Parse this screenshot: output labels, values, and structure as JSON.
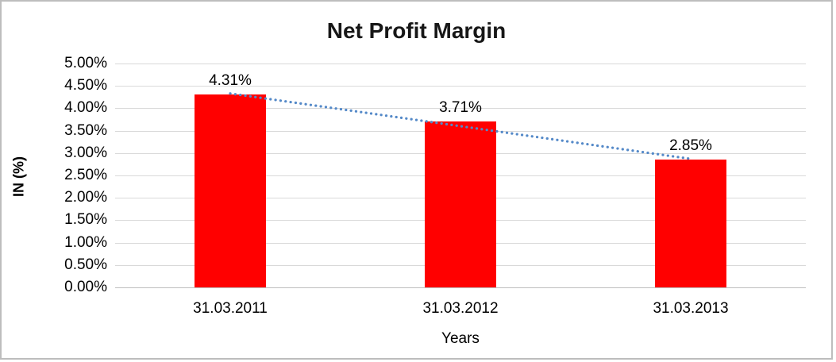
{
  "chart_data": {
    "type": "bar",
    "title": "Net Profit Margin",
    "categories": [
      "31.03.2011",
      "31.03.2012",
      "31.03.2013"
    ],
    "values": [
      4.31,
      3.71,
      2.85
    ],
    "value_labels": [
      "4.31%",
      "3.71%",
      "2.85%"
    ],
    "xlabel": "Years",
    "ylabel": "IN (%)",
    "ylim": [
      0,
      5
    ],
    "ytick_step": 0.5,
    "ytick_labels": [
      "0.00%",
      "0.50%",
      "1.00%",
      "1.50%",
      "2.00%",
      "2.50%",
      "3.00%",
      "3.50%",
      "4.00%",
      "4.50%",
      "5.00%"
    ],
    "grid": true,
    "legend": false,
    "bar_color": "#ff0000",
    "gridline_color": "#d9d9d9",
    "axis_line_color": "#bfbfbf",
    "trendline": {
      "type": "linear",
      "style": "dotted",
      "color": "#5489c8",
      "y_start": 4.33,
      "y_end": 2.87
    }
  }
}
